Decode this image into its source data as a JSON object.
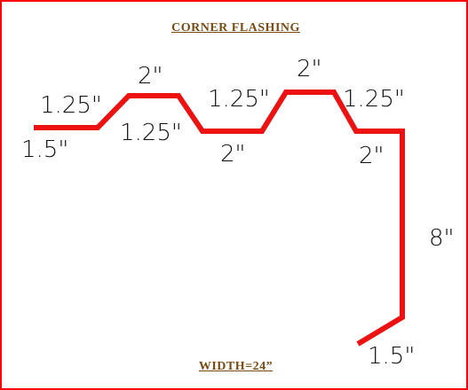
{
  "title": "CORNER  FLASHING",
  "footer": "WIDTH=24”",
  "colors": {
    "border": "#ff0000",
    "profile": "#ee1111",
    "title": "#7a4a12",
    "labels": "#111111"
  },
  "dimensions": {
    "d1": "1.5\"",
    "d2": "1.25\"",
    "d3": "2\"",
    "d4": "1.25\"",
    "d5": "2\"",
    "d6": "1.25\"",
    "d7": "2\"",
    "d8": "1.25\"",
    "d9": "2\"",
    "d10": "8\"",
    "d11": "1.5\""
  }
}
